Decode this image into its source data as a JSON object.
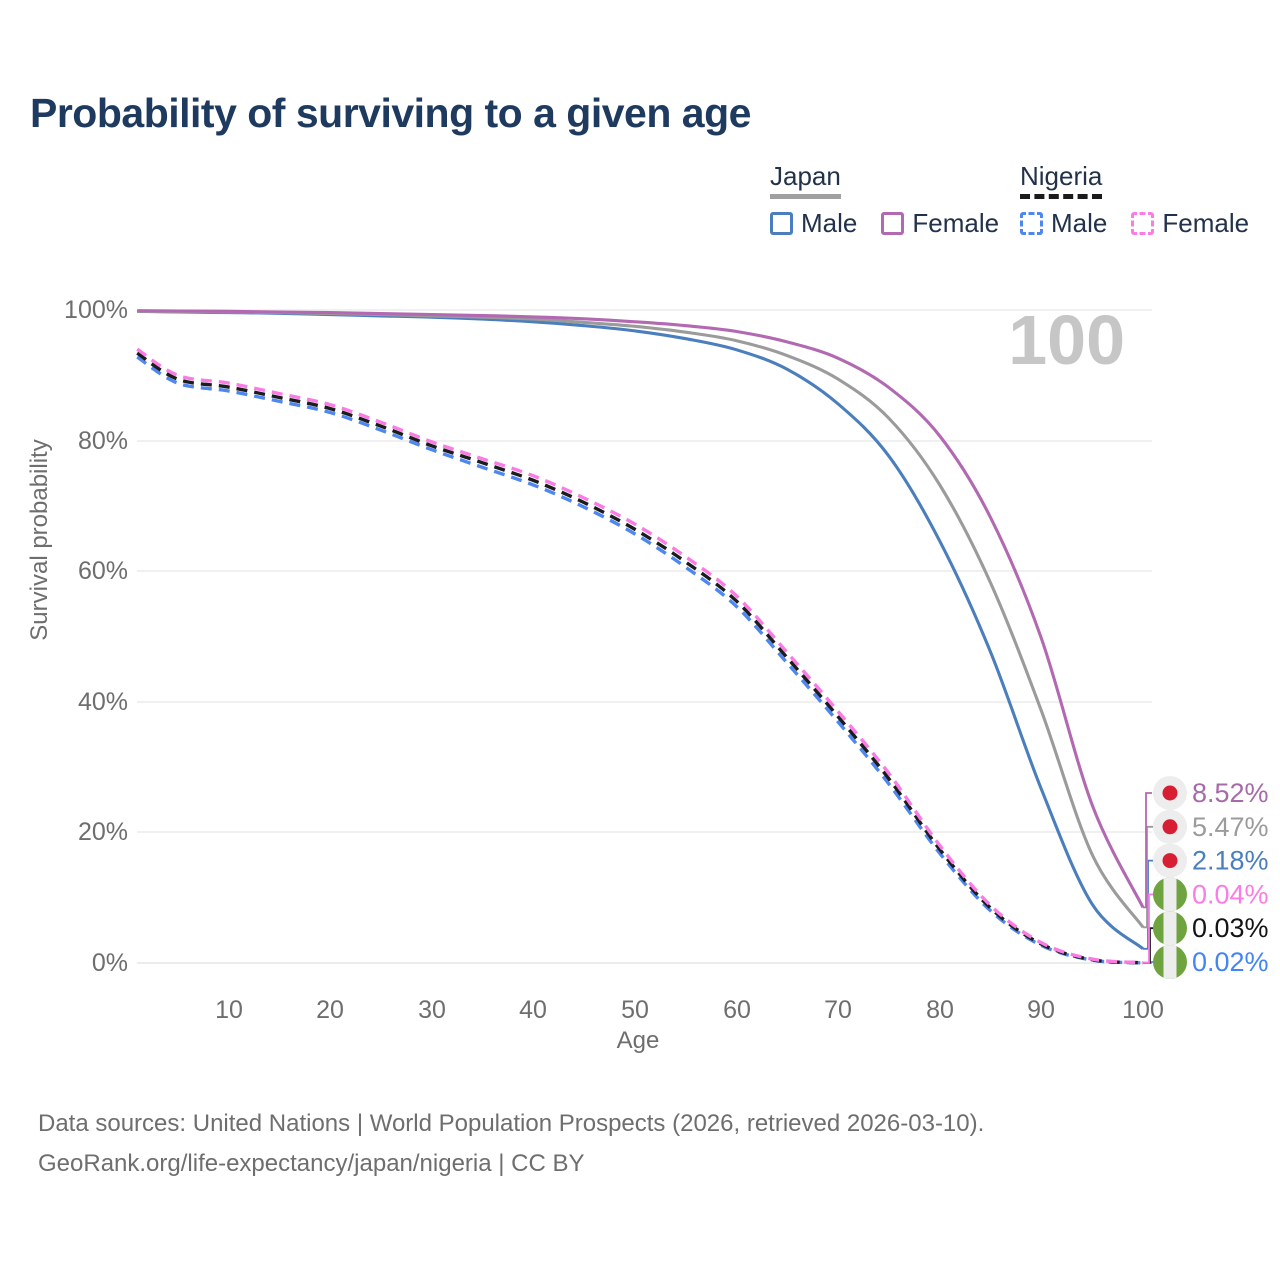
{
  "title": "Probability of surviving to a given age",
  "watermark": "100",
  "legend": {
    "groups": [
      {
        "name": "Japan",
        "underline_style": "solid",
        "underline_color": "#a0a0a0",
        "items": [
          {
            "label": "Male",
            "line_style": "solid",
            "color": "#4a7ebd"
          },
          {
            "label": "Female",
            "line_style": "solid",
            "color": "#b269b2"
          }
        ]
      },
      {
        "name": "Nigeria",
        "underline_style": "dashed",
        "underline_color": "#1b1b1b",
        "items": [
          {
            "label": "Male",
            "line_style": "dashed",
            "color": "#4e87f0"
          },
          {
            "label": "Female",
            "line_style": "dashed",
            "color": "#fb7ce4"
          }
        ]
      }
    ]
  },
  "chart_data": {
    "type": "line",
    "title": "Probability of surviving to a given age",
    "xlabel": "Age",
    "ylabel": "Survival probability",
    "xlim": [
      1,
      100
    ],
    "ylim": [
      0,
      100
    ],
    "grid": "horizontal",
    "legend_position": "top-right",
    "hovered_age": "100",
    "x_ticks": [
      {
        "label": "10",
        "value": 10
      },
      {
        "label": "20",
        "value": 20
      },
      {
        "label": "30",
        "value": 30
      },
      {
        "label": "40",
        "value": 40
      },
      {
        "label": "50",
        "value": 50
      },
      {
        "label": "60",
        "value": 60
      },
      {
        "label": "70",
        "value": 70
      },
      {
        "label": "80",
        "value": 80
      },
      {
        "label": "90",
        "value": 90
      },
      {
        "label": "100",
        "value": 100
      }
    ],
    "y_ticks": [
      {
        "label": "0%",
        "value": 0
      },
      {
        "label": "20%",
        "value": 20
      },
      {
        "label": "40%",
        "value": 40
      },
      {
        "label": "60%",
        "value": 60
      },
      {
        "label": "80%",
        "value": 80
      },
      {
        "label": "100%",
        "value": 100
      }
    ],
    "ages": [
      1,
      5,
      10,
      15,
      20,
      25,
      30,
      35,
      40,
      45,
      50,
      55,
      60,
      65,
      70,
      75,
      80,
      85,
      90,
      95,
      100
    ],
    "series": [
      {
        "name": "Japan Male",
        "country": "Japan",
        "sex": "Male",
        "color": "#4a7ebd",
        "line_style": "solid",
        "values": [
          99.8,
          99.7,
          99.6,
          99.5,
          99.3,
          99.1,
          98.9,
          98.6,
          98.2,
          97.6,
          96.8,
          95.6,
          93.9,
          90.9,
          85.6,
          77.6,
          64.6,
          47.6,
          26.6,
          9.0,
          2.18
        ],
        "end_label": {
          "text": "2.18%",
          "color": "#4a7ebd",
          "flag": "japan",
          "row": 2
        }
      },
      {
        "name": "Japan Both sexes",
        "country": "Japan",
        "sex": "Both",
        "color": "#9b9b9b",
        "line_style": "solid",
        "values": [
          99.8,
          99.75,
          99.7,
          99.6,
          99.45,
          99.3,
          99.1,
          98.9,
          98.6,
          98.1,
          97.5,
          96.6,
          95.3,
          93.0,
          89.4,
          83.4,
          73.2,
          58.2,
          38.6,
          16.6,
          5.47
        ],
        "end_label": {
          "text": "5.47%",
          "color": "#9b9b9b",
          "flag": "japan",
          "row": 1
        }
      },
      {
        "name": "Japan Female",
        "country": "Japan",
        "sex": "Female",
        "color": "#b269b2",
        "line_style": "solid",
        "values": [
          99.9,
          99.85,
          99.8,
          99.7,
          99.6,
          99.45,
          99.3,
          99.15,
          98.95,
          98.65,
          98.2,
          97.6,
          96.7,
          95.1,
          92.6,
          88.1,
          80.7,
          68.2,
          49.7,
          24.2,
          8.52
        ],
        "end_label": {
          "text": "8.52%",
          "color": "#a66aa8",
          "flag": "japan",
          "row": 0
        }
      },
      {
        "name": "Nigeria Male",
        "country": "Nigeria",
        "sex": "Male",
        "color": "#4e87f0",
        "line_style": "dashed",
        "values": [
          92.8,
          88.8,
          87.6,
          86.0,
          84.3,
          81.6,
          78.6,
          75.9,
          73.2,
          69.8,
          65.7,
          60.6,
          54.6,
          45.9,
          36.9,
          27.4,
          16.8,
          8.0,
          2.7,
          0.45,
          0.02
        ],
        "end_label": {
          "text": "0.02%",
          "color": "#4285f4",
          "flag": "nigeria",
          "row": 5
        }
      },
      {
        "name": "Nigeria Both sexes",
        "country": "Nigeria",
        "sex": "Both",
        "color": "#1c1c1c",
        "line_style": "dashed",
        "values": [
          93.4,
          89.4,
          88.2,
          86.6,
          84.9,
          82.2,
          79.2,
          76.6,
          73.9,
          70.5,
          66.4,
          61.4,
          55.4,
          46.7,
          37.7,
          28.2,
          17.4,
          8.4,
          2.9,
          0.5,
          0.03
        ],
        "end_label": {
          "text": "0.03%",
          "color": "#141414",
          "flag": "nigeria",
          "row": 4
        }
      },
      {
        "name": "Nigeria Female",
        "country": "Nigeria",
        "sex": "Female",
        "color": "#f97ce5",
        "line_style": "dashed",
        "values": [
          94.0,
          90.0,
          88.8,
          87.2,
          85.5,
          82.8,
          79.8,
          77.2,
          74.6,
          71.2,
          67.2,
          62.2,
          56.2,
          47.5,
          38.5,
          29.0,
          18.0,
          8.8,
          3.1,
          0.6,
          0.04
        ],
        "end_label": {
          "text": "0.04%",
          "color": "#fb7ce4",
          "flag": "nigeria",
          "row": 3
        }
      }
    ],
    "flag_icons": {
      "japan": {
        "bg": "#ededed",
        "dot": "#d81e33"
      },
      "nigeria": {
        "green": "#6fa33f",
        "white": "#ededed"
      }
    }
  },
  "footer": {
    "line1": "Data sources: United Nations | World Population Prospects (2026, retrieved 2026-03-10).",
    "line2": "GeoRank.org/life-expectancy/japan/nigeria | CC BY"
  }
}
